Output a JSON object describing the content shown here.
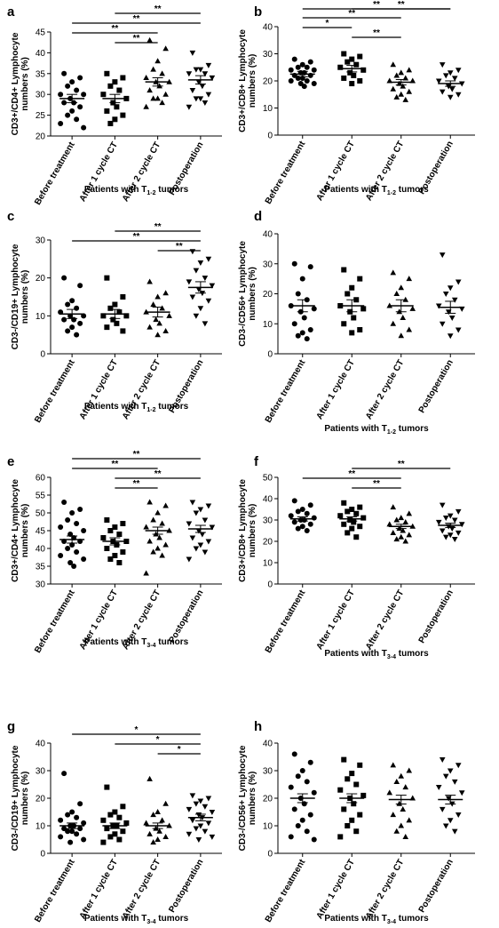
{
  "figure": {
    "panels": [
      {
        "letter": "a",
        "ylabel_lines": [
          "CD3+/CD4+ Lymphocyte",
          "numbers (%)"
        ],
        "xlabel_main": "Patients with T",
        "xlabel_sub": "1-2",
        "xlabel_tail": " tumors"
      },
      {
        "letter": "b",
        "ylabel_lines": [
          "CD3+/CD8+ Lymphocyte",
          "numbers (%)"
        ],
        "xlabel_main": "Patients with T",
        "xlabel_sub": "1-2",
        "xlabel_tail": " tumors"
      },
      {
        "letter": "c",
        "ylabel_lines": [
          "CD3-/CD19+ Lymphocyte",
          "numbers (%)"
        ],
        "xlabel_main": "Patients with T",
        "xlabel_sub": "1-2",
        "xlabel_tail": " tumors"
      },
      {
        "letter": "d",
        "ylabel_lines": [
          "CD3-/CD56+ Lymphocyte",
          "numbers (%)"
        ],
        "xlabel_main": "Patients with T",
        "xlabel_sub": "1-2",
        "xlabel_tail": " tumors"
      },
      {
        "letter": "e",
        "ylabel_lines": [
          "CD3+/CD4+ Lymphocyte",
          "numbers (%)"
        ],
        "xlabel_main": "Patients with T",
        "xlabel_sub": "3-4",
        "xlabel_tail": " tumors"
      },
      {
        "letter": "f",
        "ylabel_lines": [
          "CD3+/CD8+ Lymphocyte",
          "numbers (%)"
        ],
        "xlabel_main": "Patients with T",
        "xlabel_sub": "3-4",
        "xlabel_tail": " tumors"
      },
      {
        "letter": "g",
        "ylabel_lines": [
          "CD3-/CD19+ Lymphocyte",
          "numbers (%)"
        ],
        "xlabel_main": "Patients with T",
        "xlabel_sub": "3-4",
        "xlabel_tail": " tumors"
      },
      {
        "letter": "h",
        "ylabel_lines": [
          "CD3-/CD56+ Lymphocyte",
          "numbers (%)"
        ],
        "xlabel_main": "Patients with T",
        "xlabel_sub": "3-4",
        "xlabel_tail": " tumors"
      }
    ]
  },
  "chart_data": [
    {
      "type": "scatter",
      "panel": "a",
      "categories": [
        "Before treatment",
        "After 1 cycle CT",
        "After 2 cycle CT",
        "Postoperation"
      ],
      "ylim": [
        20,
        45
      ],
      "yticks": [
        20,
        25,
        30,
        35,
        40,
        45
      ],
      "series": [
        {
          "marker": "circle",
          "values": [
            35,
            34,
            33,
            32,
            31,
            30,
            30,
            29,
            28,
            28,
            27,
            26,
            25,
            24,
            23,
            22
          ],
          "mean": 29,
          "sem": 1
        },
        {
          "marker": "square",
          "values": [
            35,
            34,
            33,
            32,
            31,
            30,
            29,
            28,
            27,
            26,
            25,
            24,
            23
          ],
          "mean": 29,
          "sem": 1
        },
        {
          "marker": "triangle-up",
          "values": [
            43,
            41,
            38,
            36,
            35,
            34,
            33,
            33,
            32,
            31,
            30,
            29,
            29,
            28,
            27
          ],
          "mean": 33,
          "sem": 1
        },
        {
          "marker": "triangle-down",
          "values": [
            40,
            37,
            36,
            36,
            35,
            35,
            34,
            33,
            32,
            31,
            30,
            29,
            29,
            28,
            27
          ],
          "mean": 33.5,
          "sem": 1
        }
      ],
      "significance": [
        {
          "from": 1,
          "to": 3,
          "label": "**"
        },
        {
          "from": 0,
          "to": 3,
          "label": "**"
        },
        {
          "from": 0,
          "to": 2,
          "label": "**"
        },
        {
          "from": 1,
          "to": 2,
          "label": "**"
        }
      ]
    },
    {
      "type": "scatter",
      "panel": "b",
      "categories": [
        "Before treatment",
        "After 1 cycle CT",
        "After 2 cycle CT",
        "Postoperation"
      ],
      "ylim": [
        0,
        40
      ],
      "yticks": [
        0,
        10,
        20,
        30,
        40
      ],
      "series": [
        {
          "marker": "circle",
          "values": [
            28,
            27,
            26,
            25,
            25,
            24,
            24,
            23,
            23,
            22,
            22,
            21,
            21,
            20,
            20,
            19,
            19,
            18
          ],
          "mean": 22.5,
          "sem": 1
        },
        {
          "marker": "square",
          "values": [
            30,
            29,
            28,
            27,
            26,
            25,
            24,
            23,
            22,
            21,
            20,
            19
          ],
          "mean": 24.5,
          "sem": 1.2
        },
        {
          "marker": "triangle-up",
          "values": [
            26,
            24,
            23,
            22,
            21,
            20,
            20,
            19,
            18,
            17,
            16,
            15,
            14,
            13
          ],
          "mean": 19.5,
          "sem": 1
        },
        {
          "marker": "triangle-down",
          "values": [
            26,
            24,
            23,
            22,
            21,
            20,
            19,
            18,
            17,
            16,
            15,
            14
          ],
          "mean": 19,
          "sem": 1
        }
      ],
      "significance": [
        {
          "from": 1,
          "to": 3,
          "label": "**"
        },
        {
          "from": 0,
          "to": 3,
          "label": "**"
        },
        {
          "from": 0,
          "to": 2,
          "label": "**"
        },
        {
          "from": 0,
          "to": 1,
          "label": "*"
        },
        {
          "from": 1,
          "to": 2,
          "label": "**"
        }
      ]
    },
    {
      "type": "scatter",
      "panel": "c",
      "categories": [
        "Before treatment",
        "After 1 cycle CT",
        "After 2 cycle CT",
        "Postoperation"
      ],
      "ylim": [
        0,
        30
      ],
      "yticks": [
        0,
        10,
        20,
        30
      ],
      "series": [
        {
          "marker": "circle",
          "values": [
            20,
            18,
            14,
            13,
            12,
            11,
            10,
            10,
            9,
            9,
            8,
            7,
            6,
            5
          ],
          "mean": 10.5,
          "sem": 1.2
        },
        {
          "marker": "square",
          "values": [
            20,
            15,
            13,
            12,
            11,
            10,
            10,
            9,
            8,
            7,
            6
          ],
          "mean": 10.5,
          "sem": 1.2
        },
        {
          "marker": "triangle-up",
          "values": [
            19,
            16,
            15,
            13,
            12,
            11,
            10,
            9,
            8,
            7,
            6,
            5
          ],
          "mean": 11,
          "sem": 1.3
        },
        {
          "marker": "triangle-down",
          "values": [
            27,
            25,
            24,
            22,
            20,
            19,
            18,
            17,
            16,
            15,
            14,
            12,
            10,
            8
          ],
          "mean": 17.5,
          "sem": 1.5
        }
      ],
      "significance": [
        {
          "from": 1,
          "to": 3,
          "label": "**"
        },
        {
          "from": 0,
          "to": 3,
          "label": "**"
        },
        {
          "from": 2,
          "to": 3,
          "label": "**"
        }
      ]
    },
    {
      "type": "scatter",
      "panel": "d",
      "categories": [
        "Before treatment",
        "After 1 cycle CT",
        "After 2 cycle CT",
        "Postoperation"
      ],
      "ylim": [
        0,
        40
      ],
      "yticks": [
        0,
        10,
        20,
        30,
        40
      ],
      "series": [
        {
          "marker": "circle",
          "values": [
            30,
            29,
            25,
            20,
            18,
            16,
            15,
            14,
            12,
            10,
            8,
            7,
            6,
            5
          ],
          "mean": 16,
          "sem": 2
        },
        {
          "marker": "square",
          "values": [
            28,
            25,
            22,
            20,
            18,
            16,
            15,
            14,
            12,
            10,
            8,
            7
          ],
          "mean": 16,
          "sem": 2
        },
        {
          "marker": "triangle-up",
          "values": [
            27,
            25,
            22,
            20,
            18,
            16,
            15,
            14,
            12,
            10,
            8,
            6
          ],
          "mean": 16,
          "sem": 2
        },
        {
          "marker": "triangle-down",
          "values": [
            33,
            24,
            22,
            20,
            18,
            16,
            15,
            14,
            12,
            10,
            8,
            6
          ],
          "mean": 15.5,
          "sem": 2
        }
      ],
      "significance": []
    },
    {
      "type": "scatter",
      "panel": "e",
      "categories": [
        "Before treatment",
        "After 1 cycle CT",
        "After 2 cycle CT",
        "Postoperation"
      ],
      "ylim": [
        30,
        60
      ],
      "yticks": [
        30,
        35,
        40,
        45,
        50,
        55,
        60
      ],
      "series": [
        {
          "marker": "circle",
          "values": [
            53,
            51,
            50,
            48,
            47,
            46,
            45,
            44,
            43,
            42,
            42,
            41,
            40,
            39,
            38,
            37,
            36,
            35
          ],
          "mean": 42.5,
          "sem": 1
        },
        {
          "marker": "square",
          "values": [
            48,
            47,
            46,
            45,
            44,
            43,
            42,
            42,
            41,
            40,
            39,
            38,
            37,
            36
          ],
          "mean": 42,
          "sem": 1
        },
        {
          "marker": "triangle-up",
          "values": [
            53,
            52,
            50,
            48,
            47,
            46,
            45,
            44,
            43,
            42,
            41,
            40,
            39,
            38,
            33
          ],
          "mean": 45,
          "sem": 1
        },
        {
          "marker": "triangle-down",
          "values": [
            53,
            52,
            51,
            50,
            48,
            47,
            46,
            45,
            44,
            43,
            42,
            41,
            40,
            39,
            37
          ],
          "mean": 45.5,
          "sem": 1
        }
      ],
      "significance": [
        {
          "from": 0,
          "to": 3,
          "label": "**"
        },
        {
          "from": 0,
          "to": 2,
          "label": "**"
        },
        {
          "from": 1,
          "to": 3,
          "label": "**"
        },
        {
          "from": 1,
          "to": 2,
          "label": "**"
        }
      ]
    },
    {
      "type": "scatter",
      "panel": "f",
      "categories": [
        "Before treatment",
        "After 1 cycle CT",
        "After 2 cycle CT",
        "Postoperation"
      ],
      "ylim": [
        0,
        50
      ],
      "yticks": [
        0,
        10,
        20,
        30,
        40,
        50
      ],
      "series": [
        {
          "marker": "circle",
          "values": [
            39,
            37,
            35,
            34,
            33,
            32,
            31,
            30,
            30,
            29,
            28,
            27,
            26,
            25
          ],
          "mean": 30.5,
          "sem": 1
        },
        {
          "marker": "square",
          "values": [
            38,
            36,
            35,
            34,
            33,
            32,
            31,
            30,
            29,
            28,
            27,
            26,
            24,
            22
          ],
          "mean": 30.5,
          "sem": 1
        },
        {
          "marker": "triangle-up",
          "values": [
            36,
            33,
            31,
            30,
            29,
            28,
            27,
            26,
            25,
            24,
            23,
            22,
            21,
            20
          ],
          "mean": 27,
          "sem": 1
        },
        {
          "marker": "triangle-down",
          "values": [
            37,
            34,
            32,
            31,
            30,
            29,
            28,
            27,
            26,
            25,
            24,
            23,
            22,
            21
          ],
          "mean": 27.5,
          "sem": 1
        }
      ],
      "significance": [
        {
          "from": 1,
          "to": 3,
          "label": "**"
        },
        {
          "from": 0,
          "to": 2,
          "label": "**"
        },
        {
          "from": 1,
          "to": 2,
          "label": "**"
        }
      ]
    },
    {
      "type": "scatter",
      "panel": "g",
      "categories": [
        "Before treatment",
        "After 1 cycle CT",
        "After 2 cycle CT",
        "Postoperation"
      ],
      "ylim": [
        0,
        40
      ],
      "yticks": [
        0,
        10,
        20,
        30,
        40
      ],
      "series": [
        {
          "marker": "circle",
          "values": [
            29,
            18,
            15,
            14,
            13,
            12,
            11,
            10,
            10,
            9,
            9,
            8,
            8,
            7,
            6,
            5,
            4
          ],
          "mean": 10,
          "sem": 1
        },
        {
          "marker": "square",
          "values": [
            24,
            17,
            15,
            14,
            13,
            12,
            11,
            10,
            10,
            9,
            8,
            7,
            6,
            5,
            4
          ],
          "mean": 10,
          "sem": 1
        },
        {
          "marker": "triangle-up",
          "values": [
            27,
            18,
            15,
            14,
            12,
            11,
            10,
            9,
            8,
            7,
            6,
            5,
            4
          ],
          "mean": 10,
          "sem": 1
        },
        {
          "marker": "triangle-down",
          "values": [
            21,
            20,
            19,
            18,
            17,
            16,
            15,
            14,
            13,
            12,
            11,
            10,
            9,
            8,
            7,
            6,
            5
          ],
          "mean": 13,
          "sem": 1.2
        }
      ],
      "significance": [
        {
          "from": 0,
          "to": 3,
          "label": "*"
        },
        {
          "from": 1,
          "to": 3,
          "label": "*"
        },
        {
          "from": 2,
          "to": 3,
          "label": "*"
        }
      ]
    },
    {
      "type": "scatter",
      "panel": "h",
      "categories": [
        "Before treatment",
        "After 1 cycle CT",
        "After 2 cycle CT",
        "Postoperation"
      ],
      "ylim": [
        0,
        40
      ],
      "yticks": [
        0,
        10,
        20,
        30,
        40
      ],
      "series": [
        {
          "marker": "circle",
          "values": [
            36,
            33,
            30,
            28,
            26,
            24,
            22,
            20,
            18,
            16,
            14,
            12,
            10,
            8,
            6,
            5
          ],
          "mean": 20,
          "sem": 1.6
        },
        {
          "marker": "square",
          "values": [
            34,
            32,
            29,
            27,
            25,
            23,
            21,
            20,
            18,
            16,
            14,
            12,
            10,
            8,
            6
          ],
          "mean": 20,
          "sem": 1.6
        },
        {
          "marker": "triangle-up",
          "values": [
            32,
            30,
            28,
            26,
            24,
            22,
            20,
            18,
            16,
            14,
            12,
            10,
            8,
            6
          ],
          "mean": 19.5,
          "sem": 1.6
        },
        {
          "marker": "triangle-down",
          "values": [
            34,
            32,
            30,
            28,
            26,
            24,
            22,
            20,
            18,
            16,
            14,
            12,
            10,
            8
          ],
          "mean": 19.5,
          "sem": 1.6
        }
      ],
      "significance": []
    }
  ]
}
